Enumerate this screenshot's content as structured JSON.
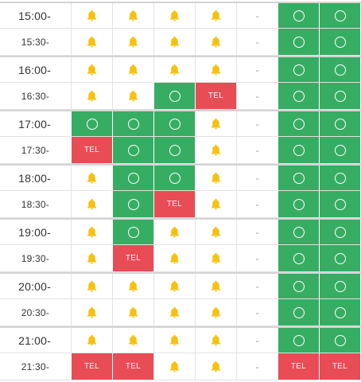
{
  "labels": {
    "tel": "TEL",
    "dash": "-"
  },
  "colors": {
    "available": "#36ad63",
    "phone": "#e84c55",
    "waitlist_bell": "#f5c211"
  },
  "icons": {
    "waitlist": "bell-icon",
    "available": "circle-icon"
  },
  "rows": [
    {
      "time": "15:00-",
      "cells": [
        "bell",
        "bell",
        "bell",
        "bell",
        "dash",
        "circle",
        "circle"
      ]
    },
    {
      "time": "15:30-",
      "cells": [
        "bell",
        "bell",
        "bell",
        "bell",
        "dash",
        "circle",
        "circle"
      ]
    },
    {
      "time": "16:00-",
      "cells": [
        "bell",
        "bell",
        "bell",
        "bell",
        "dash",
        "circle",
        "circle"
      ]
    },
    {
      "time": "16:30-",
      "cells": [
        "bell",
        "bell",
        "circle",
        "tel",
        "dash",
        "circle",
        "circle"
      ]
    },
    {
      "time": "17:00-",
      "cells": [
        "circle",
        "circle",
        "circle",
        "bell",
        "dash",
        "circle",
        "circle"
      ]
    },
    {
      "time": "17:30-",
      "cells": [
        "tel",
        "circle",
        "circle",
        "bell",
        "dash",
        "circle",
        "circle"
      ]
    },
    {
      "time": "18:00-",
      "cells": [
        "bell",
        "circle",
        "circle",
        "bell",
        "dash",
        "circle",
        "circle"
      ]
    },
    {
      "time": "18:30-",
      "cells": [
        "bell",
        "circle",
        "tel",
        "bell",
        "dash",
        "circle",
        "circle"
      ]
    },
    {
      "time": "19:00-",
      "cells": [
        "bell",
        "circle",
        "bell",
        "bell",
        "dash",
        "circle",
        "circle"
      ]
    },
    {
      "time": "19:30-",
      "cells": [
        "bell",
        "tel",
        "bell",
        "bell",
        "dash",
        "circle",
        "circle"
      ]
    },
    {
      "time": "20:00-",
      "cells": [
        "bell",
        "bell",
        "bell",
        "bell",
        "dash",
        "circle",
        "circle"
      ]
    },
    {
      "time": "20:30-",
      "cells": [
        "bell",
        "bell",
        "bell",
        "bell",
        "dash",
        "circle",
        "circle"
      ]
    },
    {
      "time": "21:00-",
      "cells": [
        "bell",
        "bell",
        "bell",
        "bell",
        "dash",
        "circle",
        "circle"
      ]
    },
    {
      "time": "21:30-",
      "cells": [
        "tel",
        "tel",
        "bell",
        "bell",
        "dash",
        "tel",
        "tel"
      ]
    }
  ]
}
